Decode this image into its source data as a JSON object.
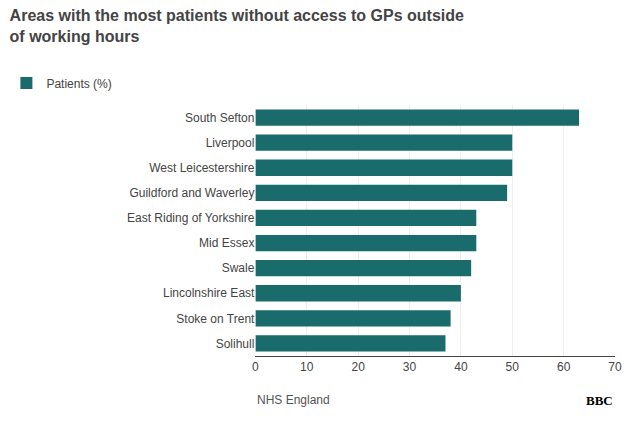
{
  "chart_data": {
    "type": "bar",
    "orientation": "horizontal",
    "title": "Areas with the most patients without access to GPs outside\nof working hours",
    "categories": [
      "South Sefton",
      "Liverpool",
      "West Leicestershire",
      "Guildford and Waverley",
      "East Riding of Yorkshire",
      "Mid Essex",
      "Swale",
      "Lincolnshire East",
      "Stoke on Trent",
      "Solihull"
    ],
    "series": [
      {
        "name": "Patients (%)",
        "color": "#1a6b6b",
        "values": [
          63,
          50,
          50,
          49,
          43,
          43,
          42,
          40,
          38,
          37
        ]
      }
    ],
    "xlim": [
      0,
      70
    ],
    "xticks": [
      0,
      10,
      20,
      30,
      40,
      50,
      60,
      70
    ],
    "grid": true,
    "legend": "top left",
    "annotations": [
      "NHS England",
      "BBC"
    ]
  }
}
